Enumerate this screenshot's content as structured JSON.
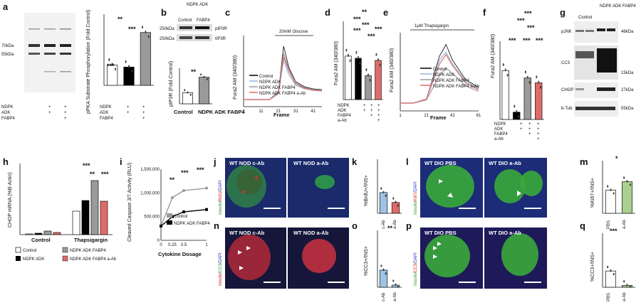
{
  "panels": {
    "a": {
      "label": "a",
      "blot_markers": [
        "70kDa",
        "55kDa"
      ],
      "blot_rows": [
        "NDPK",
        "ADK",
        "FABP4"
      ],
      "blot_signs": [
        [
          "",
          "+",
          "+"
        ],
        [
          "",
          "+",
          "+"
        ],
        [
          "",
          "",
          "+"
        ]
      ],
      "ylabel": "pPKA Substrate Phosphorylation (Fold Control)",
      "sig": [
        "**",
        "***",
        "***"
      ]
    },
    "b": {
      "label": "b",
      "header": "NDPK ADK",
      "lanes": [
        "Control",
        "FABP4"
      ],
      "bands": [
        "pIP3R",
        "tIP3R"
      ],
      "markers": [
        "250kDa",
        "250kDa"
      ],
      "ylabel": "pIP3R (Fold Control)",
      "categories": [
        "Control",
        "NDPK ADK FABP4"
      ],
      "sig": [
        "**"
      ]
    },
    "c": {
      "label": "c",
      "annotation": "20mM Glucose",
      "ylabel": "Fura2 AM (340/380)",
      "xlabel": "Frame",
      "xticks": [
        "1",
        "11",
        "21",
        "31",
        "41"
      ],
      "legend": [
        "Control",
        "NDPK ADK",
        "NDPK ADK FABP4",
        "NDPK ADK FABP4 a-Ab"
      ]
    },
    "d": {
      "label": "d",
      "ylabel": "Fura2 AM (340/380)",
      "rows": [
        "NDPK",
        "ADK",
        "FABP4",
        "a-Ab"
      ],
      "sig": [
        "**",
        "***",
        "***",
        "***",
        "***",
        "***"
      ]
    },
    "e": {
      "label": "e",
      "annotation": "1µM Thapsigargin",
      "ylabel": "Fura2 AM (340/380)",
      "xlabel": "Frame",
      "xticks": [
        "1",
        "21",
        "41",
        "61"
      ],
      "legend": [
        "Control",
        "NDPK ADK",
        "NDPK ADK FABP4",
        "NDPK ADK FABP4 a-Ab"
      ]
    },
    "f": {
      "label": "f",
      "ylabel": "Fura2 AM (340/380)",
      "rows": [
        "NDPK",
        "ADK",
        "FABP4",
        "a-Ab"
      ],
      "sig": [
        "***",
        "***",
        "***",
        "***",
        "***",
        "***"
      ]
    },
    "g": {
      "label": "g",
      "header_control": "Control",
      "header_treat": "NDPK ADK FABP4",
      "bands": [
        "pJNK",
        "CC3",
        "CHOP",
        "b-Tub"
      ],
      "markers": [
        "46kDa",
        "15kDa",
        "27kDa",
        "55kDa"
      ]
    },
    "h": {
      "label": "h",
      "ylabel": "CHOP mRNA (%B-Actin)",
      "groups": [
        "Control",
        "Thapsigargin"
      ],
      "legend": [
        "Control",
        "NDPK ADK",
        "NDPK ADK FABP4",
        "NDPK ADK FABP4 a-Ab"
      ],
      "sig": [
        "***",
        "**",
        "***"
      ]
    },
    "i": {
      "label": "i",
      "ylabel": "Cleaved Caspase 3/7 Activity (RLU)",
      "xlabel": "Cytokine Dosage",
      "xticks": [
        "0",
        "0.25",
        "0.5",
        "1"
      ],
      "yticks": [
        "0",
        "500,000",
        "1,000,000",
        "1,500,000"
      ],
      "legend": [
        "Control",
        "NDPK ADK FABP4"
      ],
      "sig": [
        "**",
        "***",
        "***"
      ]
    },
    "j": {
      "label": "j",
      "title_left": "WT NOD c-Ab",
      "title_right": "WT NOD a-Ab",
      "stain": [
        "Insulin",
        "/",
        "BrdU",
        "/",
        "DAPI"
      ]
    },
    "k": {
      "label": "k",
      "ylabel": "%BrdU+/INS+",
      "categories": [
        "c-Ab",
        "a-Ab"
      ]
    },
    "l": {
      "label": "l",
      "title_left": "WT DIO PBS",
      "title_right": "WT DIO a-Ab",
      "stain": [
        "Insulin",
        "/",
        "Ki67",
        "/",
        "DAPI"
      ]
    },
    "m": {
      "label": "m",
      "ylabel": "%Ki67+/INS+",
      "categories": [
        "PBS",
        "a-Ab"
      ],
      "sig": [
        "*"
      ]
    },
    "n": {
      "label": "n",
      "title_left": "WT NOD c-Ab",
      "title_right": "WT NOD a-Ab",
      "stain": [
        "Insulin",
        "/",
        "CC3",
        "/",
        "DAPI"
      ]
    },
    "o": {
      "label": "o",
      "ylabel": "%CC3+/INS+",
      "categories": [
        "c-Ab",
        "a-Ab"
      ],
      "sig": [
        "**"
      ]
    },
    "p": {
      "label": "p",
      "title_left": "WT DIO PBS",
      "title_right": "WT DIO a-Ab",
      "stain": [
        "Insulin",
        "/",
        "CC3",
        "/",
        "DAPI"
      ]
    },
    "q": {
      "label": "q",
      "ylabel": "%CC3+/INS+",
      "categories": [
        "PBS",
        "a-Ab"
      ],
      "sig": [
        "***"
      ]
    }
  },
  "colors": {
    "control": "#ffffff",
    "ndpk_adk": "#000000",
    "ndpk_adk_fabp4": "#9a9a9a",
    "a_ab": "#e06a6a",
    "ndpk_adk_line": "#8fb6e0",
    "bar_blue": "#9dc3e6",
    "bar_green": "#a9d08e"
  },
  "chart_data": [
    {
      "type": "bar",
      "panel": "a",
      "categories": [
        "Control",
        "NDPK ADK",
        "NDPK ADK FABP4"
      ],
      "values": [
        1.0,
        0.9,
        2.6
      ],
      "ylabel": "pPKA Substrate Phosphorylation (Fold Control)"
    },
    {
      "type": "bar",
      "panel": "b",
      "categories": [
        "Control",
        "NDPK ADK FABP4"
      ],
      "values": [
        1.0,
        2.4
      ],
      "ylabel": "pIP3R (Fold Control)"
    },
    {
      "type": "line",
      "panel": "c",
      "x": [
        1,
        6,
        11,
        16,
        21,
        24,
        27,
        31,
        36,
        41,
        46
      ],
      "series": [
        {
          "name": "Control",
          "values": [
            1.0,
            1.0,
            1.0,
            1.0,
            1.1,
            1.75,
            1.45,
            1.25,
            1.18,
            1.15,
            1.14
          ]
        },
        {
          "name": "NDPK ADK",
          "values": [
            1.0,
            1.0,
            1.0,
            1.0,
            1.08,
            1.55,
            1.35,
            1.2,
            1.15,
            1.13,
            1.12
          ]
        },
        {
          "name": "NDPK ADK FABP4",
          "values": [
            1.0,
            1.0,
            1.0,
            1.0,
            1.12,
            1.65,
            1.42,
            1.24,
            1.17,
            1.14,
            1.13
          ]
        },
        {
          "name": "NDPK ADK FABP4 a-Ab",
          "values": [
            1.0,
            1.0,
            1.0,
            1.0,
            1.1,
            1.6,
            1.4,
            1.22,
            1.16,
            1.13,
            1.12
          ]
        }
      ],
      "xlabel": "Frame",
      "ylabel": "Fura2 AM (340/380)"
    },
    {
      "type": "bar",
      "panel": "d",
      "categories": [
        "Control",
        "NDPK ADK",
        "NDPK ADK FABP4",
        "NDPK ADK FABP4 a-Ab"
      ],
      "values": [
        1.0,
        0.95,
        0.55,
        0.9
      ],
      "ylabel": "Fura2 AM (340/380)"
    },
    {
      "type": "line",
      "panel": "e",
      "x": [
        1,
        11,
        21,
        31,
        36,
        41,
        51,
        61
      ],
      "series": [
        {
          "name": "Control",
          "values": [
            1.0,
            1.0,
            1.05,
            1.6,
            1.75,
            1.55,
            1.3,
            1.2
          ]
        },
        {
          "name": "NDPK ADK",
          "values": [
            1.0,
            1.0,
            1.05,
            1.55,
            1.65,
            1.5,
            1.28,
            1.18
          ]
        },
        {
          "name": "NDPK ADK FABP4",
          "values": [
            1.0,
            1.0,
            1.04,
            1.35,
            1.45,
            1.38,
            1.22,
            1.15
          ]
        },
        {
          "name": "NDPK ADK FABP4 a-Ab",
          "values": [
            1.0,
            1.0,
            1.05,
            1.5,
            1.62,
            1.48,
            1.26,
            1.17
          ]
        }
      ],
      "xlabel": "Frame",
      "ylabel": "Fura2 AM (340/380)"
    },
    {
      "type": "bar",
      "panel": "f",
      "categories": [
        "Control",
        "NDPK ADK",
        "NDPK ADK FABP4",
        "NDPK ADK FABP4 a-Ab"
      ],
      "values": [
        1.0,
        0.15,
        0.85,
        0.75
      ],
      "ylabel": "Fura2 AM (340/380)"
    },
    {
      "type": "bar",
      "panel": "h",
      "categories": [
        "Control",
        "Thapsigargin"
      ],
      "series": [
        {
          "name": "Control",
          "values": [
            1,
            33
          ]
        },
        {
          "name": "NDPK ADK",
          "values": [
            2,
            48
          ]
        },
        {
          "name": "NDPK ADK FABP4",
          "values": [
            5,
            76
          ]
        },
        {
          "name": "NDPK ADK FABP4 a-Ab",
          "values": [
            3,
            47
          ]
        }
      ],
      "ylabel": "CHOP mRNA (%B-Actin)"
    },
    {
      "type": "line",
      "panel": "i",
      "x": [
        0,
        0.25,
        0.5,
        1
      ],
      "series": [
        {
          "name": "Control",
          "values": [
            300000,
            900000,
            1050000,
            1100000
          ]
        },
        {
          "name": "NDPK ADK FABP4",
          "values": [
            300000,
            500000,
            600000,
            650000
          ]
        }
      ],
      "xlabel": "Cytokine Dosage",
      "ylabel": "Cleaved Caspase 3/7 Activity (RLU)",
      "ylim": [
        0,
        1500000
      ]
    },
    {
      "type": "bar",
      "panel": "k",
      "categories": [
        "c-Ab",
        "a-Ab"
      ],
      "values": [
        2.3,
        1.2
      ],
      "ylabel": "%BrdU+/INS+"
    },
    {
      "type": "bar",
      "panel": "m",
      "categories": [
        "PBS",
        "a-Ab"
      ],
      "values": [
        3.5,
        4.8
      ],
      "ylabel": "%Ki67+/INS+"
    },
    {
      "type": "bar",
      "panel": "o",
      "categories": [
        "c-Ab",
        "a-Ab"
      ],
      "values": [
        12,
        1.5
      ],
      "ylabel": "%CC3+/INS+"
    },
    {
      "type": "bar",
      "panel": "q",
      "categories": [
        "PBS",
        "a-Ab"
      ],
      "values": [
        9,
        1
      ],
      "ylabel": "%CC3+/INS+"
    }
  ]
}
